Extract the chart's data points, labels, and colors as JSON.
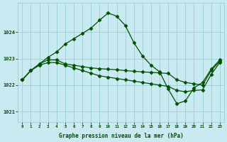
{
  "background_color": "#c8eaf0",
  "grid_color": "#90c8c8",
  "line_color": "#005000",
  "marker": "D",
  "marker_size": 2.5,
  "line_width": 0.9,
  "xlabel": "Graphe pression niveau de la mer (hPa)",
  "xlabel_color": "#005000",
  "tick_color": "#005000",
  "xlim_min": -0.5,
  "xlim_max": 23.5,
  "ylim_min": 1020.6,
  "ylim_max": 1025.1,
  "yticks": [
    1021,
    1022,
    1023,
    1024
  ],
  "xticks": [
    0,
    1,
    2,
    3,
    4,
    5,
    6,
    7,
    8,
    9,
    10,
    11,
    12,
    13,
    14,
    15,
    16,
    17,
    18,
    19,
    20,
    21,
    22,
    23
  ],
  "series1_x": [
    0,
    1,
    2,
    3,
    4,
    5,
    6,
    7,
    8,
    9,
    10,
    11,
    12,
    13,
    14,
    15,
    16,
    17,
    18,
    19,
    20,
    21,
    22,
    23
  ],
  "series1_y": [
    1022.2,
    1022.55,
    1022.8,
    1023.05,
    1023.25,
    1023.55,
    1023.75,
    1023.95,
    1024.15,
    1024.45,
    1024.72,
    1024.6,
    1024.25,
    1023.6,
    1023.1,
    1022.75,
    1022.5,
    1021.85,
    1021.3,
    1021.4,
    1021.9,
    1022.1,
    1022.6,
    1022.95
  ],
  "series2_x": [
    0,
    1,
    2,
    3,
    4,
    5,
    6,
    7,
    8,
    9,
    10,
    11,
    12,
    13,
    14,
    15,
    16,
    17,
    18,
    19,
    20,
    21,
    22,
    23
  ],
  "series2_y": [
    1022.2,
    1022.55,
    1022.8,
    1022.95,
    1022.95,
    1022.8,
    1022.75,
    1022.7,
    1022.65,
    1022.62,
    1022.6,
    1022.58,
    1022.55,
    1022.52,
    1022.5,
    1022.48,
    1022.46,
    1022.44,
    1022.2,
    1022.1,
    1022.05,
    1022.0,
    1022.55,
    1022.9
  ],
  "series3_x": [
    0,
    1,
    2,
    3,
    4,
    5,
    6,
    7,
    8,
    9,
    10,
    11,
    12,
    13,
    14,
    15,
    16,
    17,
    18,
    19,
    20,
    21,
    22,
    23
  ],
  "series3_y": [
    1022.2,
    1022.55,
    1022.75,
    1022.85,
    1022.85,
    1022.75,
    1022.65,
    1022.55,
    1022.45,
    1022.35,
    1022.3,
    1022.25,
    1022.2,
    1022.15,
    1022.1,
    1022.05,
    1022.0,
    1021.95,
    1021.8,
    1021.75,
    1021.8,
    1021.82,
    1022.4,
    1022.85
  ]
}
